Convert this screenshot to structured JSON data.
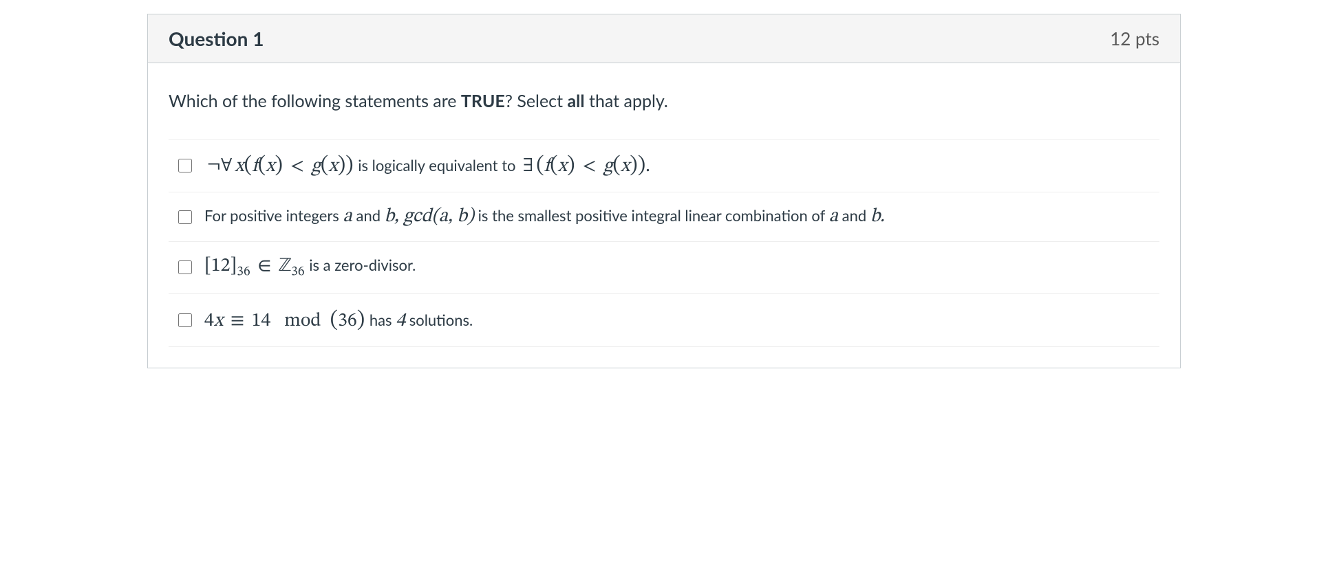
{
  "header": {
    "title": "Question 1",
    "points": "12 pts"
  },
  "prompt": {
    "pre": "Which of the following statements are ",
    "bold1": "TRUE",
    "mid": "?  Select ",
    "bold2": "all",
    "post": " that apply."
  },
  "options": {
    "opt1": {
      "math1": "¬∀",
      "var1": "x",
      "p1": "(",
      "f": "f",
      "p2": "(",
      "x1": "x",
      "p3": ")",
      "lt1": " < ",
      "g1": "g",
      "p4": "(",
      "x2": "x",
      "p5": ")",
      "p6": ")",
      "middle": " is logically equivalent to ",
      "exists": "∃",
      "p7": "(",
      "f2": "f",
      "p8": "(",
      "x3": "x",
      "p9": ")",
      "lt2": " < ",
      "g2": "g",
      "p10": "(",
      "x4": "x",
      "p11": ")",
      "p12": ")",
      "dot": "."
    },
    "opt2": {
      "pre": "For positive integers ",
      "a1": "a",
      "and1": " and ",
      "b1": "b",
      "comma": ", ",
      "gcd": "gcd",
      "p1": "(",
      "a2": "a",
      "c2": ",",
      "sp": " ",
      "b2": "b",
      "p2": ")",
      "post": " is the smallest positive integral linear combination of ",
      "a3": "a",
      "and2": " and ",
      "b3": "b",
      "dot": "."
    },
    "opt3": {
      "lb": "[",
      "n12": "12",
      "rb": "]",
      "sub1": "36",
      "in": " ∈ ",
      "Z": "ℤ",
      "sub2": "36",
      "post": " is a zero-divisor."
    },
    "opt4": {
      "four": "4",
      "x": "x",
      "equiv": " ≡ ",
      "n14": "14",
      "sp": "   ",
      "mod": "mod",
      "sp2": "  ",
      "p1": "(",
      "n36": "36",
      "p2": ")",
      "pre": " has ",
      "n4": "4",
      "post": " solutions."
    }
  }
}
